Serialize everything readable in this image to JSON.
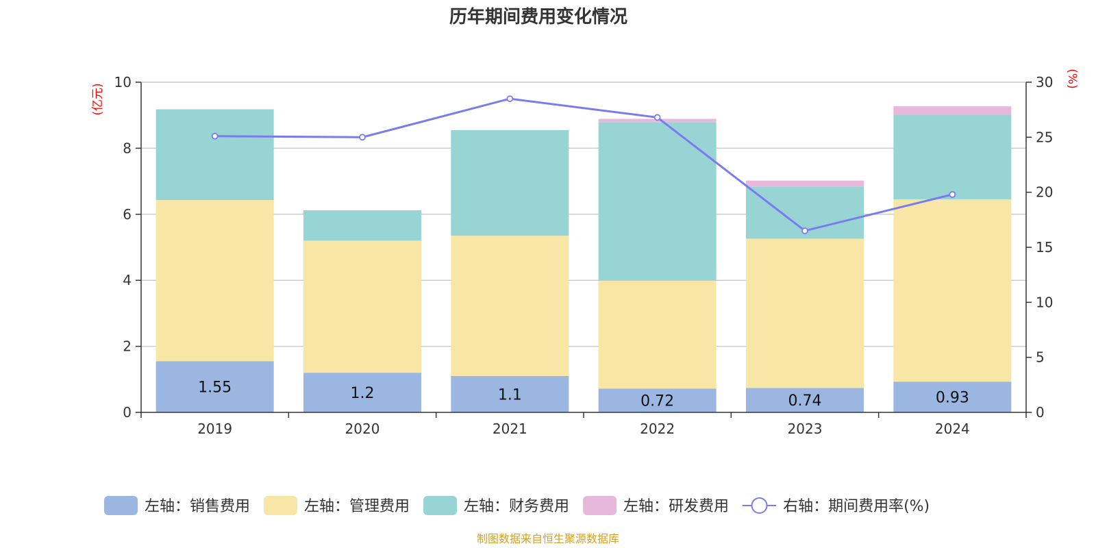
{
  "chart_data": {
    "type": "bar",
    "title": "历年期间费用变化情况",
    "categories": [
      "2019",
      "2020",
      "2021",
      "2022",
      "2023",
      "2024"
    ],
    "y_left": {
      "unit": "(亿元)",
      "range": [
        0,
        10
      ],
      "ticks": [
        "0",
        "2",
        "4",
        "6",
        "8",
        "10"
      ]
    },
    "y_right": {
      "unit": "(%)",
      "range": [
        0,
        30
      ],
      "ticks": [
        "0",
        "5",
        "10",
        "15",
        "20",
        "25",
        "30"
      ]
    },
    "grid": true,
    "stacked": true,
    "series": [
      {
        "name": "左轴：销售费用",
        "type": "bar",
        "axis": "left",
        "color": "#9bb6e0",
        "values": [
          1.55,
          1.2,
          1.1,
          0.72,
          0.74,
          0.93
        ],
        "labels": [
          "1.55",
          "1.2",
          "1.1",
          "0.72",
          "0.74",
          "0.93"
        ]
      },
      {
        "name": "左轴：管理费用",
        "type": "bar",
        "axis": "left",
        "color": "#f8e6a6",
        "values": [
          4.88,
          4.0,
          4.25,
          3.27,
          4.52,
          5.52
        ]
      },
      {
        "name": "左轴：财务费用",
        "type": "bar",
        "axis": "left",
        "color": "#98d4d4",
        "values": [
          2.75,
          0.92,
          3.2,
          4.8,
          1.58,
          2.57
        ]
      },
      {
        "name": "左轴：研发费用",
        "type": "bar",
        "axis": "left",
        "color": "#e8b8da",
        "values": [
          0,
          0,
          0,
          0.1,
          0.18,
          0.25
        ]
      },
      {
        "name": "右轴：期间费用率(%)",
        "type": "line",
        "axis": "right",
        "color": "#7b7bf0",
        "values": [
          25.1,
          25.0,
          28.5,
          26.8,
          16.5,
          19.8
        ]
      }
    ],
    "legend_position": "bottom-center"
  },
  "source_note": "制图数据来自恒生聚源数据库",
  "colors": {
    "axis_unit": "#ff0000",
    "source": "#d4a020",
    "grid": "#cccccc"
  }
}
